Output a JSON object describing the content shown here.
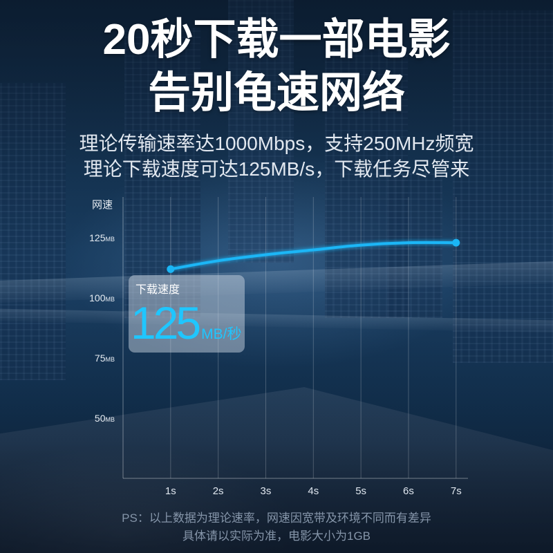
{
  "headline": {
    "line1": "20秒下载一部电影",
    "line2": "告别龟速网络"
  },
  "subheadline": {
    "line1": "理论传输速率达1000Mbps，支持250MHz频宽",
    "line2": "理论下载速度可达125MB/s，下载任务尽管来"
  },
  "speed_box": {
    "label": "下载速度",
    "value": "125",
    "unit": "MB/秒"
  },
  "footnote": {
    "line1": "PS：以上数据为理论速率，网速因宽带及环境不同而有差异",
    "line2": "具体请以实际为准，电影大小为1GB"
  },
  "colors": {
    "line": "#1ab6f6",
    "accent": "#1fc6ff",
    "headline": "#ffffff",
    "footnote": "#8595a9"
  },
  "chart_data": {
    "type": "line",
    "ylabel": "网速",
    "x": [
      1,
      2,
      3,
      4,
      5,
      6,
      7
    ],
    "x_tick_labels": [
      "1s",
      "2s",
      "3s",
      "4s",
      "5s",
      "6s",
      "7s"
    ],
    "y_ticks": [
      125,
      100,
      75,
      50
    ],
    "y_tick_unit": "MB",
    "series": [
      {
        "values": [
          112,
          115.5,
          118,
          120,
          122,
          123,
          123
        ]
      }
    ],
    "xlim": [
      0,
      7.25
    ],
    "ylim": [
      25,
      142
    ],
    "grid": "vertical"
  }
}
